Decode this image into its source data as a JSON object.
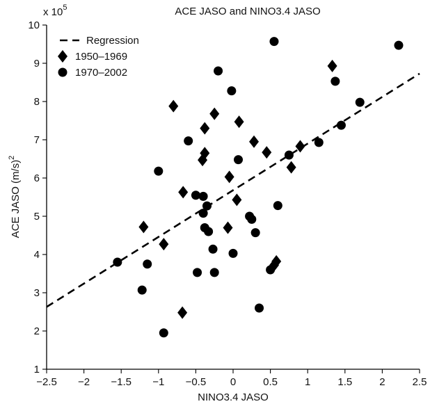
{
  "chart_data": {
    "type": "scatter",
    "title": "ACE JASO and NINO3.4 JASO",
    "xlabel": "NINO3.4 JASO",
    "ylabel": "ACE JASO (m/s)",
    "ylabel_sup": "2",
    "y_multiplier_base": "x 10",
    "y_multiplier_exp": "5",
    "xlim": [
      -2.5,
      2.5
    ],
    "ylim": [
      1,
      10
    ],
    "xticks": [
      -2.5,
      -2,
      -1.5,
      -1,
      -0.5,
      0,
      0.5,
      1,
      1.5,
      2,
      2.5
    ],
    "xtick_labels": [
      "−2.5",
      "−2",
      "−1.5",
      "−1",
      "−0.5",
      "0",
      "0.5",
      "1",
      "1.5",
      "2",
      "2.5"
    ],
    "yticks": [
      1,
      2,
      3,
      4,
      5,
      6,
      7,
      8,
      9,
      10
    ],
    "ytick_labels": [
      "1",
      "2",
      "3",
      "4",
      "5",
      "6",
      "7",
      "8",
      "9",
      "10"
    ],
    "grid": false,
    "legend_position": "top-left",
    "regression": {
      "name": "Regression",
      "x": [
        -2.5,
        2.5
      ],
      "y": [
        2.63,
        8.73
      ]
    },
    "series": [
      {
        "name": "1950–1969",
        "marker": "diamond",
        "points": [
          [
            -1.2,
            4.72
          ],
          [
            -0.93,
            4.27
          ],
          [
            -0.8,
            7.88
          ],
          [
            -0.67,
            5.63
          ],
          [
            -0.68,
            2.48
          ],
          [
            -0.41,
            6.47
          ],
          [
            -0.38,
            6.65
          ],
          [
            -0.38,
            7.3
          ],
          [
            -0.25,
            7.68
          ],
          [
            0.08,
            7.47
          ],
          [
            -0.05,
            6.03
          ],
          [
            0.05,
            5.43
          ],
          [
            -0.07,
            4.7
          ],
          [
            0.28,
            6.95
          ],
          [
            0.45,
            6.67
          ],
          [
            0.55,
            3.72
          ],
          [
            0.58,
            3.82
          ],
          [
            0.78,
            6.28
          ],
          [
            0.9,
            6.83
          ],
          [
            1.33,
            8.93
          ]
        ]
      },
      {
        "name": "1970–2002",
        "marker": "circle",
        "points": [
          [
            -1.55,
            3.8
          ],
          [
            -1.22,
            3.07
          ],
          [
            -1.15,
            3.75
          ],
          [
            -1.0,
            6.18
          ],
          [
            -0.93,
            1.95
          ],
          [
            -0.6,
            6.97
          ],
          [
            -0.5,
            5.55
          ],
          [
            -0.48,
            3.53
          ],
          [
            -0.4,
            5.52
          ],
          [
            -0.4,
            5.08
          ],
          [
            -0.38,
            4.7
          ],
          [
            -0.35,
            5.27
          ],
          [
            -0.33,
            4.6
          ],
          [
            -0.27,
            4.14
          ],
          [
            -0.25,
            3.53
          ],
          [
            -0.2,
            8.8
          ],
          [
            -0.02,
            8.28
          ],
          [
            0.0,
            4.03
          ],
          [
            0.07,
            6.48
          ],
          [
            0.22,
            5.0
          ],
          [
            0.25,
            4.92
          ],
          [
            0.3,
            4.57
          ],
          [
            0.35,
            2.6
          ],
          [
            0.5,
            3.6
          ],
          [
            0.6,
            5.28
          ],
          [
            0.55,
            9.57
          ],
          [
            0.75,
            6.6
          ],
          [
            1.15,
            6.93
          ],
          [
            1.37,
            8.53
          ],
          [
            1.45,
            7.38
          ],
          [
            1.7,
            7.98
          ],
          [
            2.22,
            9.47
          ]
        ]
      }
    ]
  }
}
